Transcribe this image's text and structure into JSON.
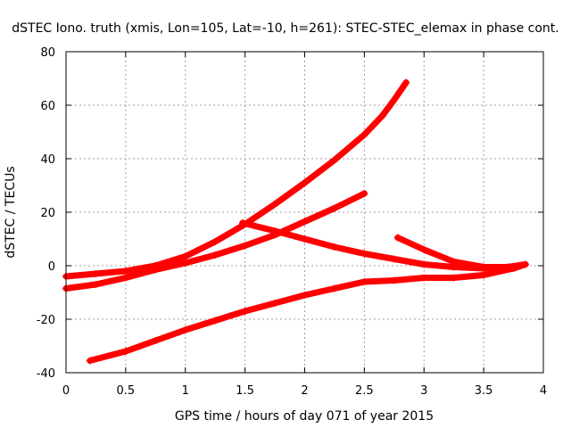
{
  "chart_data": {
    "type": "scatter",
    "title": "dSTEC Iono. truth (xmis, Lon=105, Lat=-10, h=261): STEC-STEC_elemax in phase cont.",
    "xlabel": "GPS time / hours of day 071 of year 2015",
    "ylabel": "dSTEC  / TECUs",
    "xlim": [
      0,
      4
    ],
    "ylim": [
      -40,
      80
    ],
    "xticks": [
      0,
      0.5,
      1,
      1.5,
      2,
      2.5,
      3,
      3.5,
      4
    ],
    "yticks": [
      -40,
      -20,
      0,
      20,
      40,
      60,
      80
    ],
    "xtick_labels": [
      "0",
      "0.5",
      "1",
      "1.5",
      "2",
      "2.5",
      "3",
      "3.5",
      "4"
    ],
    "ytick_labels": [
      "-40",
      "-20",
      "0",
      "20",
      "40",
      "60",
      "80"
    ],
    "grid": true,
    "marker": "plus",
    "series": [
      {
        "color": "#ff0000",
        "x": [
          0.0,
          0.25,
          0.5,
          0.75,
          1.0,
          1.25,
          1.5,
          1.75,
          2.0,
          2.25,
          2.5,
          2.65,
          2.75,
          2.85
        ],
        "y": [
          -4.0,
          -3.0,
          -2.0,
          0.0,
          3.5,
          9.0,
          15.5,
          23.0,
          31.0,
          39.5,
          49.0,
          56.0,
          62.0,
          68.5
        ]
      },
      {
        "color": "#ff0000",
        "x": [
          0.0,
          0.25,
          0.5,
          0.75,
          1.0,
          1.25,
          1.5,
          1.75,
          2.0,
          2.25,
          2.5
        ],
        "y": [
          -8.5,
          -7.0,
          -4.5,
          -1.5,
          1.0,
          4.0,
          7.5,
          11.5,
          16.5,
          21.5,
          27.0
        ]
      },
      {
        "color": "#ff0000",
        "x": [
          0.2,
          0.5,
          0.75,
          1.0,
          1.25,
          1.5,
          1.75,
          2.0,
          2.25,
          2.5,
          2.75,
          3.0,
          3.25,
          3.5,
          3.75,
          3.85
        ],
        "y": [
          -35.5,
          -32.0,
          -28.0,
          -24.0,
          -20.5,
          -17.0,
          -14.0,
          -11.0,
          -8.5,
          -6.0,
          -5.5,
          -4.5,
          -4.5,
          -3.5,
          -1.0,
          0.5
        ]
      },
      {
        "color": "#ff0000",
        "x": [
          1.48,
          1.75,
          2.0,
          2.25,
          2.5,
          2.75,
          3.0,
          3.25,
          3.5,
          3.7
        ],
        "y": [
          16.0,
          13.0,
          10.0,
          7.0,
          4.5,
          2.5,
          0.5,
          -0.5,
          -1.0,
          -0.5
        ]
      },
      {
        "color": "#ff0000",
        "x": [
          2.78,
          3.0,
          3.25,
          3.5,
          3.7,
          3.85
        ],
        "y": [
          10.5,
          6.0,
          1.5,
          -0.5,
          -0.5,
          0.5
        ]
      }
    ]
  }
}
